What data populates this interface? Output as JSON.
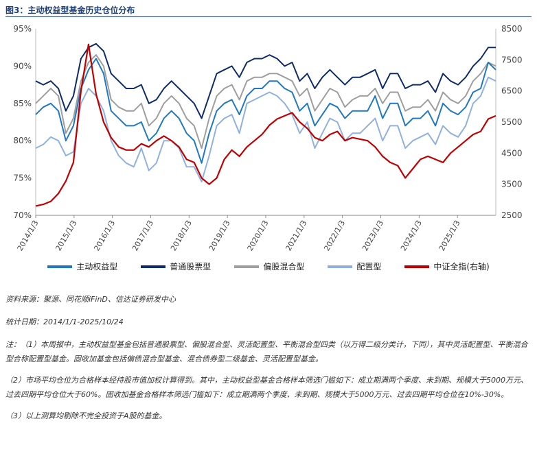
{
  "title": "图3：主动权益型基金历史仓位分布",
  "chart_data": {
    "type": "line",
    "x_ticks": [
      "2014/1/3",
      "2015/1/3",
      "2016/1/3",
      "2017/1/3",
      "2018/1/3",
      "2019/1/3",
      "2020/1/3",
      "2021/1/3",
      "2022/1/3",
      "2023/1/3",
      "2024/1/3",
      "2025/1/3"
    ],
    "y_left": {
      "ticks": [
        "95%",
        "90%",
        "85%",
        "80%",
        "75%",
        "70%"
      ],
      "range": [
        70,
        95
      ]
    },
    "y_right": {
      "ticks": [
        "8500",
        "7500",
        "6500",
        "5500",
        "4500",
        "3500",
        "2500"
      ],
      "range": [
        2500,
        8500
      ]
    },
    "series": [
      {
        "name": "主动权益型",
        "color": "#1f78c1",
        "axis": "left",
        "values": [
          83.5,
          84.5,
          85,
          84,
          80,
          82,
          87,
          89.5,
          91,
          89,
          84,
          83,
          82,
          82,
          82.5,
          80,
          81,
          83,
          84,
          83,
          81,
          80,
          77,
          81,
          84,
          85,
          85.5,
          83.5,
          86,
          87,
          87,
          88,
          88,
          87,
          86.5,
          84,
          85,
          82,
          83.5,
          85,
          84.5,
          83,
          84,
          84,
          84,
          86,
          83,
          85,
          85,
          82,
          83,
          83,
          84,
          82,
          85,
          84,
          83.5,
          84.5,
          86.5,
          87,
          90.5,
          89.5
        ]
      },
      {
        "name": "普通股票型",
        "color": "#0d2b6b",
        "axis": "left",
        "values": [
          88,
          87.5,
          88,
          87,
          84,
          86,
          91,
          92.5,
          93,
          92,
          89,
          88,
          87,
          87,
          87.5,
          85,
          85.5,
          87,
          88,
          87,
          86,
          85,
          83,
          86,
          89,
          89.5,
          90,
          88.5,
          90.5,
          91,
          91,
          91.5,
          91,
          90,
          90.5,
          88,
          89,
          87,
          88.5,
          89.5,
          88.5,
          87.5,
          88.5,
          88.5,
          89,
          89.5,
          87,
          89,
          89,
          87,
          87.5,
          87.5,
          88,
          86.5,
          89,
          88,
          87.5,
          88.5,
          90,
          91,
          92.5,
          92.5
        ]
      },
      {
        "name": "偏股混合型",
        "color": "#9e9e9e",
        "axis": "left",
        "values": [
          85,
          86,
          87,
          86,
          81,
          83,
          88,
          90.5,
          91.5,
          90,
          85.5,
          84.5,
          84,
          84,
          85,
          82,
          83,
          85,
          86,
          85,
          83,
          82,
          79,
          83,
          86,
          87,
          87.5,
          85.5,
          88,
          88.5,
          88.5,
          89,
          89,
          88.5,
          88,
          86,
          87,
          84,
          85.5,
          87,
          86.5,
          84.5,
          85.5,
          86,
          86,
          87,
          85,
          86.5,
          86.5,
          84,
          84.5,
          84.5,
          85.5,
          84,
          86.5,
          85.5,
          85,
          86,
          88,
          89,
          90.5,
          90
        ]
      },
      {
        "name": "配置型",
        "color": "#8fb0e0",
        "axis": "left",
        "values": [
          79,
          79.5,
          80.5,
          80,
          78,
          78.5,
          85,
          87,
          86,
          84,
          80,
          78,
          77,
          76.5,
          79,
          76,
          77,
          80,
          80,
          79,
          76.5,
          76.5,
          74.5,
          78,
          82,
          83,
          83.5,
          81,
          85,
          85.5,
          86,
          86.5,
          86,
          85,
          83.5,
          81,
          82.5,
          79,
          81,
          83,
          82.5,
          80,
          81,
          81,
          82,
          83,
          80,
          82,
          82,
          79,
          80,
          80.5,
          81,
          79.5,
          82,
          81,
          80.5,
          82,
          85,
          86,
          88.5,
          88
        ]
      },
      {
        "name": "中证全指(右轴)",
        "color": "#c00000",
        "axis": "right",
        "values": [
          2800,
          2850,
          2950,
          3200,
          3600,
          4200,
          6500,
          8000,
          6400,
          5500,
          5000,
          4700,
          4600,
          4600,
          4800,
          4700,
          4900,
          5050,
          4900,
          4700,
          4300,
          4200,
          3700,
          3500,
          3700,
          4300,
          4600,
          4400,
          4700,
          4900,
          5100,
          5400,
          5600,
          5700,
          5800,
          5500,
          5300,
          5000,
          4900,
          5100,
          5200,
          4900,
          5000,
          4950,
          4900,
          4700,
          4400,
          4200,
          4100,
          3700,
          4000,
          4300,
          4400,
          4300,
          4200,
          4500,
          4700,
          4900,
          5100,
          5200,
          5600,
          5700
        ]
      }
    ]
  },
  "notes": {
    "source": "资料来源：聚源、同花顺iFinD、信达证券研发中心",
    "date": "统计日期：2014/1/1-2025/10/24",
    "note1": "注：（1）本周报中，主动权益型基金包括普通股票型、偏股混合型、灵活配置型、平衡混合型四类（以万得二级分类计，下同），其中灵活配置型、平衡混合型合称配置型基金。固收加基金包括偏债混合型基金、混合债券型二级基金、灵活配置型基金。",
    "note2": "（2）市场平均仓位为合格样本经持股市值加权计算得到。其中，主动权益型基金合格样本筛选门槛如下：成立期满两个季度、未到期、规模大于5000万元、过去四期平均仓位大于60%。固收加基金合格样本筛选门槛如下：成立期满两个季度、未到期、规模大于5000万元、过去四期平均仓位在10%-30%。",
    "note3": "（3）以上测算均剔除不完全投资于A股的基金。"
  }
}
